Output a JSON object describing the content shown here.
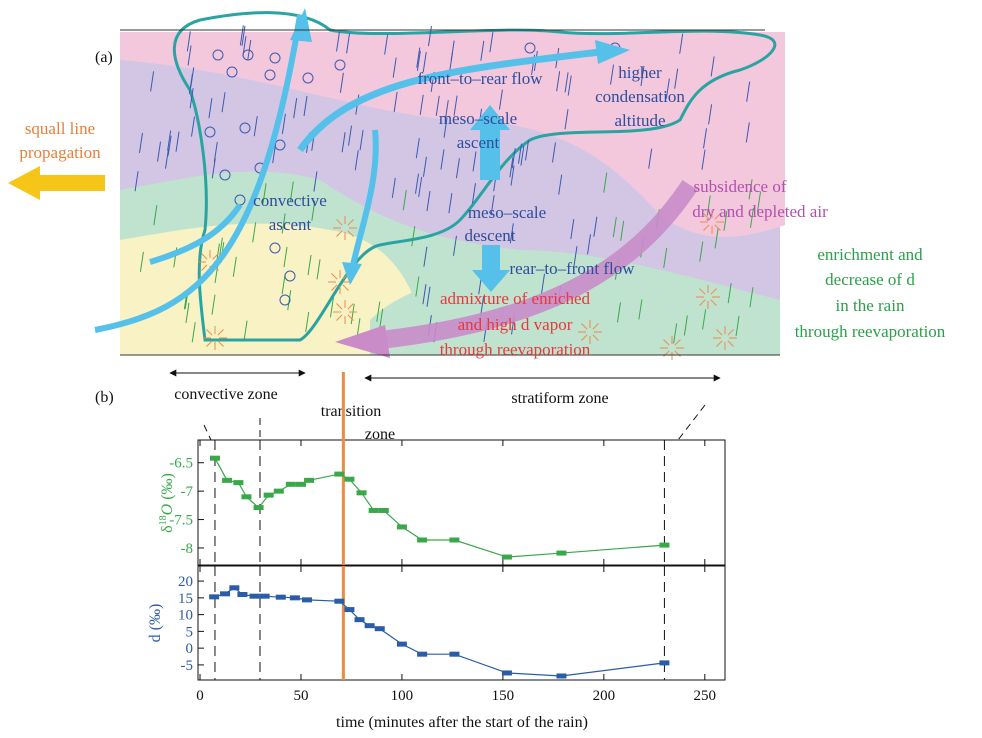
{
  "diagram": {
    "panel_label": "(a)",
    "squall": [
      "squall line",
      "propagation"
    ],
    "front_to_rear": "front–to–rear flow",
    "condensation": [
      "higher",
      "condensation",
      "altitude"
    ],
    "meso_ascent": [
      "meso–scale",
      "ascent"
    ],
    "convective_ascent": [
      "convective",
      "ascent"
    ],
    "meso_descent": [
      "meso–scale",
      "descent"
    ],
    "rear_to_front": "rear–to–front flow",
    "subsidence": [
      "subsidence of",
      "dry and depleted air"
    ],
    "enrichment": [
      "enrichment and",
      "decrease of d",
      "in the rain",
      "through reevaporation"
    ],
    "admixture": [
      "admixture of enriched",
      "and high d vapor",
      "through reevaporation"
    ]
  },
  "zones": {
    "panel_label": "(b)",
    "convective": "convective zone",
    "transition": [
      "transition",
      "zone"
    ],
    "stratiform": "stratiform zone"
  },
  "chart_data": [
    {
      "type": "line",
      "color": "#3aa84a",
      "ylabel": {
        "symbol": "δ",
        "superscript": "18",
        "variable": "O",
        "unit": "(‰)"
      },
      "x": [
        7.4,
        13.4,
        19,
        23,
        29,
        34,
        39,
        45,
        50,
        54,
        69,
        74,
        80,
        86,
        91,
        100,
        110,
        126,
        152,
        179,
        230
      ],
      "values": [
        -6.42,
        -6.81,
        -6.85,
        -7.1,
        -7.29,
        -7.07,
        -7.0,
        -6.88,
        -6.88,
        -6.81,
        -6.7,
        -6.79,
        -7.03,
        -7.34,
        -7.34,
        -7.63,
        -7.86,
        -7.86,
        -8.16,
        -8.09,
        -7.95
      ],
      "xlim": [
        -1,
        260
      ],
      "ylim": [
        -8.3,
        -6.1
      ],
      "yticks": [
        -8,
        -7.5,
        -7,
        -6.5
      ]
    },
    {
      "type": "line",
      "color": "#2a5ca8",
      "ylabel": "d (‰)",
      "xlabel": "time (minutes after the start of the rain)",
      "x": [
        7,
        12.4,
        17,
        21,
        27,
        32,
        40,
        47,
        53,
        69,
        74,
        79,
        84,
        89,
        100,
        110,
        126,
        152,
        179,
        230
      ],
      "values": [
        15.3,
        16.2,
        18,
        16,
        15.5,
        15.5,
        15.2,
        15,
        14.4,
        14,
        11.5,
        8.5,
        6.7,
        5.8,
        1.2,
        -1.8,
        -1.8,
        -7.4,
        -8.3,
        -4.4
      ],
      "xlim": [
        -1,
        260
      ],
      "ylim": [
        -9.5,
        24.5
      ],
      "xticks": [
        0,
        50,
        100,
        150,
        200,
        250
      ],
      "yticks": [
        -5,
        0,
        5,
        10,
        15,
        20
      ],
      "zone_boundaries": [
        7.4,
        29.7,
        230
      ],
      "transition_x": 71
    }
  ]
}
